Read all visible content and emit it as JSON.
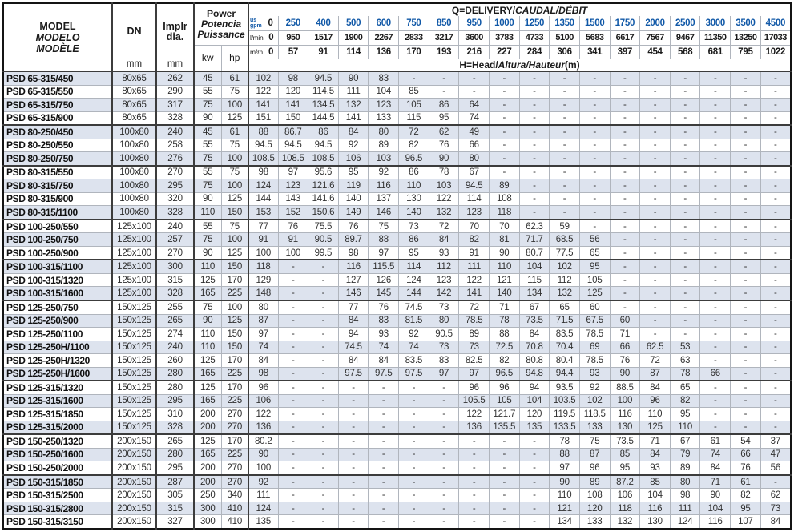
{
  "colors": {
    "accent_blue": "#1058a7",
    "stripe": "#dde3ee",
    "grid_light": "#b0b5bd",
    "grid_strong": "#3c3c3c",
    "outer_border": "#141414"
  },
  "table": {
    "header": {
      "model": [
        "MODEL",
        "MODELO",
        "MODÈLE"
      ],
      "dn": {
        "label": "DN",
        "unit": "mm"
      },
      "implr": {
        "lines": [
          "Implr",
          "dia."
        ],
        "unit": "mm"
      },
      "power": [
        "Power",
        "Potencia",
        "Puissance"
      ],
      "power_units": [
        "kw",
        "hp"
      ],
      "q_title": {
        "bold": "Q=DELIVERY/",
        "italic": "CAUDAL/DÉBIT"
      },
      "h_title": {
        "bold": "H=Head/",
        "italic": "Altura/Hauteur",
        "suffix": "(m)"
      },
      "gpm_label": [
        "us",
        "gpm"
      ],
      "lmin_label": "l/min",
      "m3h_label": "m³/h",
      "gpm_values": [
        "0",
        "250",
        "400",
        "500",
        "600",
        "750",
        "850",
        "950",
        "1000",
        "1250",
        "1350",
        "1500",
        "1750",
        "2000",
        "2500",
        "3000",
        "3500",
        "4500"
      ],
      "lmin_values": [
        "0",
        "950",
        "1517",
        "1900",
        "2267",
        "2833",
        "3217",
        "3600",
        "3783",
        "4733",
        "5100",
        "5683",
        "6617",
        "7567",
        "9467",
        "11350",
        "13250",
        "17033"
      ],
      "m3h_values": [
        "0",
        "57",
        "91",
        "114",
        "136",
        "170",
        "193",
        "216",
        "227",
        "284",
        "306",
        "341",
        "397",
        "454",
        "568",
        "681",
        "795",
        "1022"
      ]
    },
    "group_starts": [
      4,
      7,
      11,
      14,
      17,
      23,
      27,
      30
    ],
    "rows": [
      {
        "model": "PSD 65-315/450",
        "dn": "80x65",
        "implr": "262",
        "kw": "45",
        "hp": "61",
        "head": [
          "102",
          "98",
          "94.5",
          "90",
          "83",
          "-",
          "-",
          "-",
          "-",
          "-",
          "-",
          "-",
          "-",
          "-",
          "-",
          "-",
          "-",
          "-"
        ]
      },
      {
        "model": "PSD 65-315/550",
        "dn": "80x65",
        "implr": "290",
        "kw": "55",
        "hp": "75",
        "head": [
          "122",
          "120",
          "114.5",
          "111",
          "104",
          "85",
          "-",
          "-",
          "-",
          "-",
          "-",
          "-",
          "-",
          "-",
          "-",
          "-",
          "-",
          "-"
        ]
      },
      {
        "model": "PSD 65-315/750",
        "dn": "80x65",
        "implr": "317",
        "kw": "75",
        "hp": "100",
        "head": [
          "141",
          "141",
          "134.5",
          "132",
          "123",
          "105",
          "86",
          "64",
          "-",
          "-",
          "-",
          "-",
          "-",
          "-",
          "-",
          "-",
          "-",
          "-"
        ]
      },
      {
        "model": "PSD 65-315/900",
        "dn": "80x65",
        "implr": "328",
        "kw": "90",
        "hp": "125",
        "head": [
          "151",
          "150",
          "144.5",
          "141",
          "133",
          "115",
          "95",
          "74",
          "-",
          "-",
          "-",
          "-",
          "-",
          "-",
          "-",
          "-",
          "-",
          "-"
        ]
      },
      {
        "model": "PSD 80-250/450",
        "dn": "100x80",
        "implr": "240",
        "kw": "45",
        "hp": "61",
        "head": [
          "88",
          "86.7",
          "86",
          "84",
          "80",
          "72",
          "62",
          "49",
          "-",
          "-",
          "-",
          "-",
          "-",
          "-",
          "-",
          "-",
          "-",
          "-"
        ]
      },
      {
        "model": "PSD 80-250/550",
        "dn": "100x80",
        "implr": "258",
        "kw": "55",
        "hp": "75",
        "head": [
          "94.5",
          "94.5",
          "94.5",
          "92",
          "89",
          "82",
          "76",
          "66",
          "-",
          "-",
          "-",
          "-",
          "-",
          "-",
          "-",
          "-",
          "-",
          "-"
        ]
      },
      {
        "model": "PSD 80-250/750",
        "dn": "100x80",
        "implr": "276",
        "kw": "75",
        "hp": "100",
        "head": [
          "108.5",
          "108.5",
          "108.5",
          "106",
          "103",
          "96.5",
          "90",
          "80",
          "-",
          "-",
          "-",
          "-",
          "-",
          "-",
          "-",
          "-",
          "-",
          "-"
        ]
      },
      {
        "model": "PSD 80-315/550",
        "dn": "100x80",
        "implr": "270",
        "kw": "55",
        "hp": "75",
        "head": [
          "98",
          "97",
          "95.6",
          "95",
          "92",
          "86",
          "78",
          "67",
          "-",
          "-",
          "-",
          "-",
          "-",
          "-",
          "-",
          "-",
          "-",
          "-"
        ]
      },
      {
        "model": "PSD 80-315/750",
        "dn": "100x80",
        "implr": "295",
        "kw": "75",
        "hp": "100",
        "head": [
          "124",
          "123",
          "121.6",
          "119",
          "116",
          "110",
          "103",
          "94.5",
          "89",
          "-",
          "-",
          "-",
          "-",
          "-",
          "-",
          "-",
          "-",
          "-"
        ]
      },
      {
        "model": "PSD 80-315/900",
        "dn": "100x80",
        "implr": "320",
        "kw": "90",
        "hp": "125",
        "head": [
          "144",
          "143",
          "141.6",
          "140",
          "137",
          "130",
          "122",
          "114",
          "108",
          "-",
          "-",
          "-",
          "-",
          "-",
          "-",
          "-",
          "-",
          "-"
        ]
      },
      {
        "model": "PSD 80-315/1100",
        "dn": "100x80",
        "implr": "328",
        "kw": "110",
        "hp": "150",
        "head": [
          "153",
          "152",
          "150.6",
          "149",
          "146",
          "140",
          "132",
          "123",
          "118",
          "-",
          "-",
          "-",
          "-",
          "-",
          "-",
          "-",
          "-",
          "-"
        ]
      },
      {
        "model": "PSD 100-250/550",
        "dn": "125x100",
        "implr": "240",
        "kw": "55",
        "hp": "75",
        "head": [
          "77",
          "76",
          "75.5",
          "76",
          "75",
          "73",
          "72",
          "70",
          "70",
          "62.3",
          "59",
          "-",
          "-",
          "-",
          "-",
          "-",
          "-",
          "-"
        ]
      },
      {
        "model": "PSD 100-250/750",
        "dn": "125x100",
        "implr": "257",
        "kw": "75",
        "hp": "100",
        "head": [
          "91",
          "91",
          "90.5",
          "89.7",
          "88",
          "86",
          "84",
          "82",
          "81",
          "71.7",
          "68.5",
          "56",
          "-",
          "-",
          "-",
          "-",
          "-",
          "-"
        ]
      },
      {
        "model": "PSD 100-250/900",
        "dn": "125x100",
        "implr": "270",
        "kw": "90",
        "hp": "125",
        "head": [
          "100",
          "100",
          "99.5",
          "98",
          "97",
          "95",
          "93",
          "91",
          "90",
          "80.7",
          "77.5",
          "65",
          "-",
          "-",
          "-",
          "-",
          "-",
          "-"
        ]
      },
      {
        "model": "PSD 100-315/1100",
        "dn": "125x100",
        "implr": "300",
        "kw": "110",
        "hp": "150",
        "head": [
          "118",
          "-",
          "-",
          "116",
          "115.5",
          "114",
          "112",
          "111",
          "110",
          "104",
          "102",
          "95",
          "-",
          "-",
          "-",
          "-",
          "-",
          "-"
        ]
      },
      {
        "model": "PSD 100-315/1320",
        "dn": "125x100",
        "implr": "315",
        "kw": "125",
        "hp": "170",
        "head": [
          "129",
          "-",
          "-",
          "127",
          "126",
          "124",
          "123",
          "122",
          "121",
          "115",
          "112",
          "105",
          "-",
          "-",
          "-",
          "-",
          "-",
          "-"
        ]
      },
      {
        "model": "PSD 100-315/1600",
        "dn": "125x100",
        "implr": "328",
        "kw": "165",
        "hp": "225",
        "head": [
          "148",
          "-",
          "-",
          "146",
          "145",
          "144",
          "142",
          "141",
          "140",
          "134",
          "132",
          "125",
          "-",
          "-",
          "-",
          "-",
          "-",
          "-"
        ]
      },
      {
        "model": "PSD 125-250/750",
        "dn": "150x125",
        "implr": "255",
        "kw": "75",
        "hp": "100",
        "head": [
          "80",
          "-",
          "-",
          "77",
          "76",
          "74.5",
          "73",
          "72",
          "71",
          "67",
          "65",
          "60",
          "-",
          "-",
          "-",
          "-",
          "-",
          "-"
        ]
      },
      {
        "model": "PSD 125-250/900",
        "dn": "150x125",
        "implr": "265",
        "kw": "90",
        "hp": "125",
        "head": [
          "87",
          "-",
          "-",
          "84",
          "83",
          "81.5",
          "80",
          "78.5",
          "78",
          "73.5",
          "71.5",
          "67.5",
          "60",
          "-",
          "-",
          "-",
          "-",
          "-"
        ]
      },
      {
        "model": "PSD 125-250/1100",
        "dn": "150x125",
        "implr": "274",
        "kw": "110",
        "hp": "150",
        "head": [
          "97",
          "-",
          "-",
          "94",
          "93",
          "92",
          "90.5",
          "89",
          "88",
          "84",
          "83.5",
          "78.5",
          "71",
          "-",
          "-",
          "-",
          "-",
          "-"
        ]
      },
      {
        "model": "PSD 125-250H/1100",
        "dn": "150x125",
        "implr": "240",
        "kw": "110",
        "hp": "150",
        "head": [
          "74",
          "-",
          "-",
          "74.5",
          "74",
          "74",
          "73",
          "73",
          "72.5",
          "70.8",
          "70.4",
          "69",
          "66",
          "62.5",
          "53",
          "-",
          "-",
          "-"
        ]
      },
      {
        "model": "PSD 125-250H/1320",
        "dn": "150x125",
        "implr": "260",
        "kw": "125",
        "hp": "170",
        "head": [
          "84",
          "-",
          "-",
          "84",
          "84",
          "83.5",
          "83",
          "82.5",
          "82",
          "80.8",
          "80.4",
          "78.5",
          "76",
          "72",
          "63",
          "-",
          "-",
          "-"
        ]
      },
      {
        "model": "PSD 125-250H/1600",
        "dn": "150x125",
        "implr": "280",
        "kw": "165",
        "hp": "225",
        "head": [
          "98",
          "-",
          "-",
          "97.5",
          "97.5",
          "97.5",
          "97",
          "97",
          "96.5",
          "94.8",
          "94.4",
          "93",
          "90",
          "87",
          "78",
          "66",
          "-",
          "-"
        ]
      },
      {
        "model": "PSD 125-315/1320",
        "dn": "150x125",
        "implr": "280",
        "kw": "125",
        "hp": "170",
        "head": [
          "96",
          "-",
          "-",
          "-",
          "-",
          "-",
          "-",
          "96",
          "96",
          "94",
          "93.5",
          "92",
          "88.5",
          "84",
          "65",
          "-",
          "-",
          "-"
        ]
      },
      {
        "model": "PSD 125-315/1600",
        "dn": "150x125",
        "implr": "295",
        "kw": "165",
        "hp": "225",
        "head": [
          "106",
          "-",
          "-",
          "-",
          "-",
          "-",
          "-",
          "105.5",
          "105",
          "104",
          "103.5",
          "102",
          "100",
          "96",
          "82",
          "-",
          "-",
          "-"
        ]
      },
      {
        "model": "PSD 125-315/1850",
        "dn": "150x125",
        "implr": "310",
        "kw": "200",
        "hp": "270",
        "head": [
          "122",
          "-",
          "-",
          "-",
          "-",
          "-",
          "-",
          "122",
          "121.7",
          "120",
          "119.5",
          "118.5",
          "116",
          "110",
          "95",
          "-",
          "-",
          "-"
        ]
      },
      {
        "model": "PSD 125-315/2000",
        "dn": "150x125",
        "implr": "328",
        "kw": "200",
        "hp": "270",
        "head": [
          "136",
          "-",
          "-",
          "-",
          "-",
          "-",
          "-",
          "136",
          "135.5",
          "135",
          "133.5",
          "133",
          "130",
          "125",
          "110",
          "-",
          "-",
          "-"
        ]
      },
      {
        "model": "PSD 150-250/1320",
        "dn": "200x150",
        "implr": "265",
        "kw": "125",
        "hp": "170",
        "head": [
          "80.2",
          "-",
          "-",
          "-",
          "-",
          "-",
          "-",
          "-",
          "-",
          "-",
          "78",
          "75",
          "73.5",
          "71",
          "67",
          "61",
          "54",
          "37"
        ]
      },
      {
        "model": "PSD 150-250/1600",
        "dn": "200x150",
        "implr": "280",
        "kw": "165",
        "hp": "225",
        "head": [
          "90",
          "-",
          "-",
          "-",
          "-",
          "-",
          "-",
          "-",
          "-",
          "-",
          "88",
          "87",
          "85",
          "84",
          "79",
          "74",
          "66",
          "47"
        ]
      },
      {
        "model": "PSD 150-250/2000",
        "dn": "200x150",
        "implr": "295",
        "kw": "200",
        "hp": "270",
        "head": [
          "100",
          "-",
          "-",
          "-",
          "-",
          "-",
          "-",
          "-",
          "-",
          "-",
          "97",
          "96",
          "95",
          "93",
          "89",
          "84",
          "76",
          "56"
        ]
      },
      {
        "model": "PSD 150-315/1850",
        "dn": "200x150",
        "implr": "287",
        "kw": "200",
        "hp": "270",
        "head": [
          "92",
          "-",
          "-",
          "-",
          "-",
          "-",
          "-",
          "-",
          "-",
          "-",
          "90",
          "89",
          "87.2",
          "85",
          "80",
          "71",
          "61",
          "-"
        ]
      },
      {
        "model": "PSD 150-315/2500",
        "dn": "200x150",
        "implr": "305",
        "kw": "250",
        "hp": "340",
        "head": [
          "111",
          "-",
          "-",
          "-",
          "-",
          "-",
          "-",
          "-",
          "-",
          "-",
          "110",
          "108",
          "106",
          "104",
          "98",
          "90",
          "82",
          "62"
        ]
      },
      {
        "model": "PSD 150-315/2800",
        "dn": "200x150",
        "implr": "315",
        "kw": "300",
        "hp": "410",
        "head": [
          "124",
          "-",
          "-",
          "-",
          "-",
          "-",
          "-",
          "-",
          "-",
          "-",
          "121",
          "120",
          "118",
          "116",
          "111",
          "104",
          "95",
          "73"
        ]
      },
      {
        "model": "PSD 150-315/3150",
        "dn": "200x150",
        "implr": "327",
        "kw": "300",
        "hp": "410",
        "head": [
          "135",
          "-",
          "-",
          "-",
          "-",
          "-",
          "-",
          "-",
          "-",
          "-",
          "134",
          "133",
          "132",
          "130",
          "124",
          "116",
          "107",
          "84"
        ]
      }
    ]
  }
}
